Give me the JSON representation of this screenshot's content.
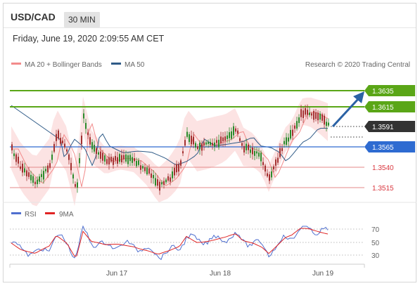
{
  "header": {
    "symbol": "USD/CAD",
    "timeframe": "30 MIN",
    "timestamp": "Friday, June 19, 2020 2:09:55 AM CET"
  },
  "legend": {
    "ma20_bb": "MA 20 + Bollinger Bands",
    "ma50": "MA 50",
    "credit": "Research © 2020 Trading Central"
  },
  "colors": {
    "resistance": "#5aa617",
    "support": "#2e6bd1",
    "support_secondary": "#d9363e",
    "current": "#333333",
    "bollinger_fill": "#fbd9d9",
    "ma20": "#f28b8b",
    "ma50": "#2f5b87",
    "candle_up": "#2b8a2b",
    "candle_down": "#a33030",
    "arrow": "#2b62a5",
    "rsi": "#4f6fcf",
    "rsi_ma": "#e02424"
  },
  "levels": {
    "r2": "1.3635",
    "r1": "1.3615",
    "current": "1.3591",
    "pivot": "1.3565",
    "s1": "1.3540",
    "s2": "1.3515"
  },
  "rsi_panel": {
    "rsi_label": "RSI",
    "ma_label": "9MA",
    "ticks": [
      "70",
      "50",
      "30"
    ]
  },
  "x_axis": {
    "labels": [
      "Jun 17",
      "Jun 18",
      "Jun 19"
    ]
  }
}
